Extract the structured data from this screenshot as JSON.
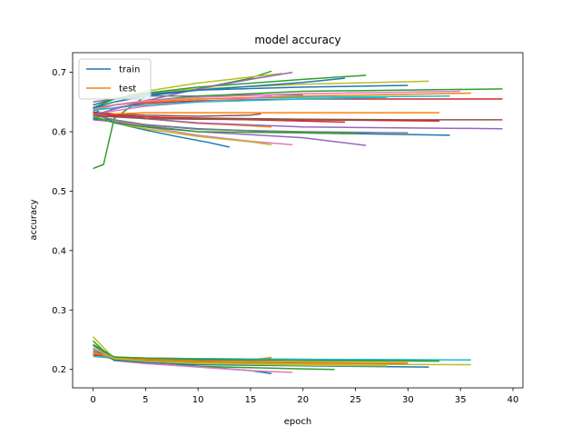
{
  "chart_data": {
    "type": "line",
    "title": "model accuracy",
    "xlabel": "epoch",
    "ylabel": "accuracy",
    "xlim": [
      -1.95,
      40.95
    ],
    "ylim": [
      0.169,
      0.733
    ],
    "xticks": [
      0,
      5,
      10,
      15,
      20,
      25,
      30,
      35,
      40
    ],
    "yticks": [
      0.2,
      0.3,
      0.4,
      0.5,
      0.6,
      0.7
    ],
    "ytick_labels": [
      "0.2",
      "0.3",
      "0.4",
      "0.5",
      "0.6",
      "0.7"
    ],
    "grid": false,
    "legend": {
      "placement": "top-left",
      "entries": [
        {
          "label": "train",
          "color": "#1f77b4"
        },
        {
          "label": "test",
          "color": "#ff7f0e"
        }
      ]
    },
    "color_cycle": [
      "#1f77b4",
      "#ff7f0e",
      "#2ca02c",
      "#d62728",
      "#9467bd",
      "#8c564b",
      "#e377c2",
      "#7f7f7f",
      "#bcbd22",
      "#17becf"
    ],
    "series": [
      {
        "color": "#1f77b4",
        "x": [
          0,
          2,
          5,
          8,
          11,
          13
        ],
        "y": [
          0.64,
          0.615,
          0.603,
          0.592,
          0.582,
          0.574
        ]
      },
      {
        "color": "#ff7f0e",
        "x": [
          0,
          2,
          5,
          10,
          15,
          17
        ],
        "y": [
          0.625,
          0.628,
          0.622,
          0.614,
          0.61,
          0.608
        ]
      },
      {
        "color": "#2ca02c",
        "x": [
          0,
          1,
          2,
          5,
          10,
          15,
          17
        ],
        "y": [
          0.538,
          0.545,
          0.622,
          0.66,
          0.672,
          0.69,
          0.702
        ]
      },
      {
        "color": "#d62728",
        "x": [
          0,
          2,
          5,
          10,
          20,
          30,
          39
        ],
        "y": [
          0.62,
          0.64,
          0.648,
          0.652,
          0.655,
          0.655,
          0.655
        ]
      },
      {
        "color": "#9467bd",
        "x": [
          0,
          2,
          5,
          10,
          20,
          26
        ],
        "y": [
          0.62,
          0.617,
          0.61,
          0.6,
          0.59,
          0.577
        ]
      },
      {
        "color": "#8c564b",
        "x": [
          0,
          2,
          5,
          10,
          20,
          30,
          39
        ],
        "y": [
          0.63,
          0.628,
          0.625,
          0.623,
          0.621,
          0.62,
          0.62
        ]
      },
      {
        "color": "#e377c2",
        "x": [
          0,
          2,
          5,
          10,
          15,
          19
        ],
        "y": [
          0.628,
          0.62,
          0.608,
          0.594,
          0.584,
          0.578
        ]
      },
      {
        "color": "#7f7f7f",
        "x": [
          0,
          2,
          5,
          10,
          15,
          20
        ],
        "y": [
          0.65,
          0.655,
          0.66,
          0.66,
          0.662,
          0.662
        ]
      },
      {
        "color": "#bcbd22",
        "x": [
          0,
          2,
          5,
          10,
          20,
          32
        ],
        "y": [
          0.64,
          0.655,
          0.665,
          0.672,
          0.68,
          0.685
        ]
      },
      {
        "color": "#17becf",
        "x": [
          0,
          2,
          5,
          10,
          20,
          34
        ],
        "y": [
          0.635,
          0.645,
          0.65,
          0.655,
          0.658,
          0.66
        ]
      },
      {
        "color": "#1f77b4",
        "x": [
          0,
          2,
          5,
          10,
          20,
          34
        ],
        "y": [
          0.622,
          0.62,
          0.612,
          0.605,
          0.598,
          0.594
        ]
      },
      {
        "color": "#ff7f0e",
        "x": [
          0,
          2,
          5,
          10,
          20,
          36
        ],
        "y": [
          0.635,
          0.645,
          0.65,
          0.655,
          0.66,
          0.665
        ]
      },
      {
        "color": "#2ca02c",
        "x": [
          0,
          2,
          5,
          10,
          20,
          39
        ],
        "y": [
          0.64,
          0.645,
          0.652,
          0.66,
          0.668,
          0.672
        ]
      },
      {
        "color": "#d62728",
        "x": [
          0,
          2,
          5,
          10,
          20,
          33
        ],
        "y": [
          0.625,
          0.627,
          0.625,
          0.622,
          0.62,
          0.618
        ]
      },
      {
        "color": "#9467bd",
        "x": [
          0,
          2,
          5,
          10,
          20,
          39
        ],
        "y": [
          0.63,
          0.628,
          0.622,
          0.615,
          0.608,
          0.605
        ]
      },
      {
        "color": "#8c564b",
        "x": [
          0,
          2,
          5,
          10,
          15,
          16
        ],
        "y": [
          0.633,
          0.63,
          0.628,
          0.626,
          0.628,
          0.63
        ]
      },
      {
        "color": "#e377c2",
        "x": [
          0,
          2,
          5,
          10,
          14,
          17
        ],
        "y": [
          0.63,
          0.635,
          0.643,
          0.65,
          0.655,
          0.66
        ]
      },
      {
        "color": "#7f7f7f",
        "x": [
          0,
          2,
          5,
          10,
          20,
          30
        ],
        "y": [
          0.628,
          0.62,
          0.612,
          0.604,
          0.6,
          0.598
        ]
      },
      {
        "color": "#bcbd22",
        "x": [
          0,
          2,
          5,
          10,
          15,
          18
        ],
        "y": [
          0.64,
          0.655,
          0.668,
          0.682,
          0.692,
          0.698
        ]
      },
      {
        "color": "#17becf",
        "x": [
          0,
          2,
          5,
          10,
          20,
          28
        ],
        "y": [
          0.636,
          0.64,
          0.645,
          0.65,
          0.655,
          0.658
        ]
      },
      {
        "color": "#1f77b4",
        "x": [
          0,
          2,
          5,
          10,
          20,
          30
        ],
        "y": [
          0.645,
          0.655,
          0.663,
          0.67,
          0.675,
          0.678
        ]
      },
      {
        "color": "#ff7f0e",
        "x": [
          0,
          2,
          5,
          10,
          20,
          33
        ],
        "y": [
          0.626,
          0.63,
          0.632,
          0.632,
          0.632,
          0.632
        ]
      },
      {
        "color": "#2ca02c",
        "x": [
          0,
          2,
          5,
          10,
          20,
          26
        ],
        "y": [
          0.64,
          0.655,
          0.665,
          0.675,
          0.688,
          0.695
        ]
      },
      {
        "color": "#d62728",
        "x": [
          0,
          2,
          5,
          10,
          20,
          24
        ],
        "y": [
          0.632,
          0.628,
          0.625,
          0.622,
          0.618,
          0.616
        ]
      },
      {
        "color": "#9467bd",
        "x": [
          0,
          2,
          5,
          10,
          15,
          19
        ],
        "y": [
          0.628,
          0.638,
          0.652,
          0.672,
          0.688,
          0.7
        ]
      },
      {
        "color": "#8c564b",
        "x": [
          0,
          2,
          5,
          10,
          20,
          27
        ],
        "y": [
          0.628,
          0.625,
          0.622,
          0.621,
          0.62,
          0.62
        ]
      },
      {
        "color": "#e377c2",
        "x": [
          0,
          2,
          5,
          10,
          20,
          35
        ],
        "y": [
          0.638,
          0.645,
          0.652,
          0.658,
          0.664,
          0.668
        ]
      },
      {
        "color": "#bcbd22",
        "x": [
          0,
          2,
          5,
          10,
          15,
          17
        ],
        "y": [
          0.626,
          0.615,
          0.605,
          0.592,
          0.583,
          0.578
        ]
      },
      {
        "color": "#1f77b4",
        "x": [
          0,
          2,
          5,
          10,
          20,
          24
        ],
        "y": [
          0.64,
          0.65,
          0.66,
          0.67,
          0.683,
          0.69
        ]
      },
      {
        "color": "#2ca02c",
        "x": [
          0,
          2,
          5,
          10,
          20,
          25
        ],
        "y": [
          0.625,
          0.615,
          0.608,
          0.6,
          0.598,
          0.597
        ]
      },
      {
        "color": "#1f77b4",
        "x": [
          0,
          2,
          5,
          10,
          15,
          17
        ],
        "y": [
          0.222,
          0.221,
          0.216,
          0.205,
          0.198,
          0.193
        ]
      },
      {
        "color": "#ff7f0e",
        "x": [
          0,
          2,
          5,
          10,
          15,
          17
        ],
        "y": [
          0.225,
          0.22,
          0.218,
          0.216,
          0.216,
          0.22
        ]
      },
      {
        "color": "#2ca02c",
        "x": [
          0,
          2,
          5,
          10,
          20,
          23
        ],
        "y": [
          0.248,
          0.215,
          0.21,
          0.205,
          0.201,
          0.2
        ]
      },
      {
        "color": "#d62728",
        "x": [
          0,
          2,
          5,
          10,
          20,
          33
        ],
        "y": [
          0.225,
          0.22,
          0.219,
          0.218,
          0.217,
          0.216
        ]
      },
      {
        "color": "#9467bd",
        "x": [
          0,
          2,
          5,
          10,
          20,
          26
        ],
        "y": [
          0.24,
          0.218,
          0.214,
          0.212,
          0.21,
          0.209
        ]
      },
      {
        "color": "#8c564b",
        "x": [
          0,
          2,
          5,
          10,
          20,
          30
        ],
        "y": [
          0.222,
          0.219,
          0.216,
          0.213,
          0.211,
          0.21
        ]
      },
      {
        "color": "#e377c2",
        "x": [
          0,
          2,
          5,
          10,
          15,
          19
        ],
        "y": [
          0.232,
          0.216,
          0.21,
          0.204,
          0.198,
          0.195
        ]
      },
      {
        "color": "#7f7f7f",
        "x": [
          0,
          2,
          5,
          10,
          20,
          30
        ],
        "y": [
          0.23,
          0.221,
          0.218,
          0.216,
          0.215,
          0.215
        ]
      },
      {
        "color": "#bcbd22",
        "x": [
          0,
          2,
          5,
          10,
          20,
          36
        ],
        "y": [
          0.255,
          0.218,
          0.214,
          0.211,
          0.209,
          0.208
        ]
      },
      {
        "color": "#17becf",
        "x": [
          0,
          2,
          5,
          10,
          20,
          36
        ],
        "y": [
          0.222,
          0.22,
          0.219,
          0.218,
          0.217,
          0.216
        ]
      },
      {
        "color": "#1f77b4",
        "x": [
          0,
          2,
          5,
          10,
          20,
          32
        ],
        "y": [
          0.235,
          0.216,
          0.212,
          0.208,
          0.206,
          0.204
        ]
      },
      {
        "color": "#ff7f0e",
        "x": [
          0,
          2,
          5,
          10,
          20,
          30
        ],
        "y": [
          0.228,
          0.22,
          0.217,
          0.214,
          0.212,
          0.211
        ]
      },
      {
        "color": "#2ca02c",
        "x": [
          0,
          2,
          5,
          10,
          20,
          33
        ],
        "y": [
          0.242,
          0.221,
          0.219,
          0.217,
          0.215,
          0.214
        ]
      },
      {
        "color": "#bcbd22",
        "x": [
          0,
          2,
          5,
          10,
          20,
          28
        ],
        "y": [
          0.236,
          0.218,
          0.214,
          0.21,
          0.207,
          0.206
        ]
      }
    ]
  }
}
